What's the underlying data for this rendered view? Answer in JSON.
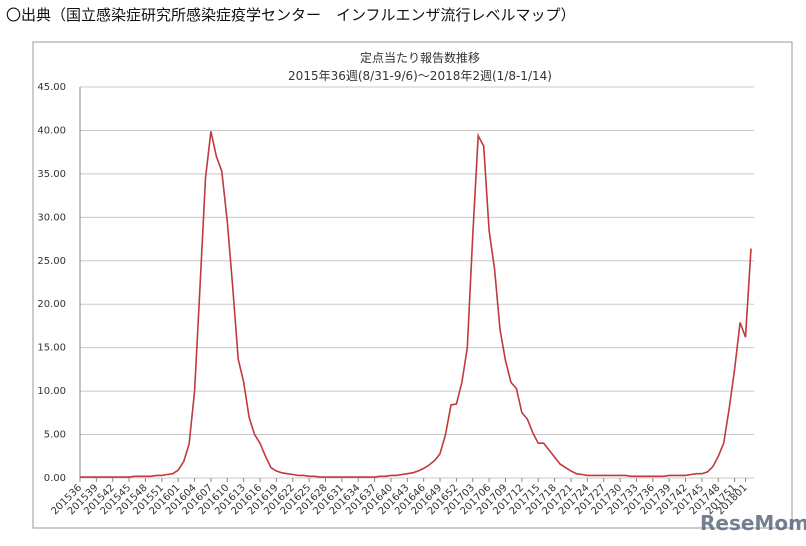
{
  "header": "〇出典（国立感染症研究所感染症疫学センター　インフルエンザ流行レベルマップ）",
  "watermark": "ReseMom",
  "chart_data": {
    "type": "line",
    "title": "定点当たり報告数推移",
    "subtitle": "2015年36週(8/31-9/6)〜2018年2週(1/8-1/14)",
    "color": "#c0393b",
    "grid": true,
    "ylim": [
      0,
      45
    ],
    "yticks": [
      {
        "value": 0,
        "label": "0.00"
      },
      {
        "value": 5,
        "label": "5.00"
      },
      {
        "value": 10,
        "label": "10.00"
      },
      {
        "value": 15,
        "label": "15.00"
      },
      {
        "value": 20,
        "label": "20.00"
      },
      {
        "value": 25,
        "label": "25.00"
      },
      {
        "value": 30,
        "label": "30.00"
      },
      {
        "value": 35,
        "label": "35.00"
      },
      {
        "value": 40,
        "label": "40.00"
      },
      {
        "value": 45,
        "label": "45.00"
      }
    ],
    "categories": [
      "201536",
      null,
      null,
      "201539",
      null,
      null,
      "201542",
      null,
      null,
      "201545",
      null,
      null,
      "201548",
      null,
      null,
      "201551",
      null,
      null,
      "201601",
      null,
      null,
      "201604",
      null,
      null,
      "201607",
      null,
      null,
      "201610",
      null,
      null,
      "201613",
      null,
      null,
      "201616",
      null,
      null,
      "201619",
      null,
      null,
      "201622",
      null,
      null,
      "201625",
      null,
      null,
      "201628",
      null,
      null,
      "201631",
      null,
      null,
      "201634",
      null,
      null,
      "201637",
      null,
      null,
      "201640",
      null,
      null,
      "201643",
      null,
      null,
      "201646",
      null,
      null,
      "201649",
      null,
      null,
      "201652",
      null,
      null,
      "201703",
      null,
      null,
      "201706",
      null,
      null,
      "201709",
      null,
      null,
      "201712",
      null,
      null,
      "201715",
      null,
      null,
      "201718",
      null,
      null,
      "201721",
      null,
      null,
      "201724",
      null,
      null,
      "201727",
      null,
      null,
      "201730",
      null,
      null,
      "201733",
      null,
      null,
      "201736",
      null,
      null,
      "201739",
      null,
      null,
      "201742",
      null,
      null,
      "201745",
      null,
      null,
      "201748",
      null,
      null,
      "201751",
      null,
      "201801",
      null
    ],
    "values": [
      0.1,
      0.1,
      0.1,
      0.1,
      0.1,
      0.1,
      0.1,
      0.1,
      0.1,
      0.1,
      0.2,
      0.2,
      0.2,
      0.2,
      0.3,
      0.3,
      0.4,
      0.5,
      0.9,
      1.9,
      3.9,
      10.0,
      22.0,
      34.5,
      39.9,
      37.0,
      35.3,
      29.5,
      22.0,
      13.7,
      11.0,
      7.0,
      5.0,
      4.0,
      2.5,
      1.2,
      0.8,
      0.6,
      0.5,
      0.4,
      0.3,
      0.3,
      0.2,
      0.2,
      0.1,
      0.1,
      0.1,
      0.1,
      0.1,
      0.1,
      0.1,
      0.1,
      0.1,
      0.1,
      0.1,
      0.2,
      0.2,
      0.3,
      0.3,
      0.4,
      0.5,
      0.6,
      0.8,
      1.1,
      1.5,
      2.0,
      2.8,
      5.0,
      8.4,
      8.5,
      11.0,
      15.0,
      28.0,
      39.4,
      38.2,
      28.5,
      24.0,
      17.0,
      13.5,
      11.0,
      10.3,
      7.5,
      6.8,
      5.2,
      4.0,
      4.0,
      3.2,
      2.4,
      1.6,
      1.2,
      0.8,
      0.5,
      0.4,
      0.3,
      0.3,
      0.3,
      0.3,
      0.3,
      0.3,
      0.3,
      0.3,
      0.2,
      0.2,
      0.2,
      0.2,
      0.2,
      0.2,
      0.2,
      0.3,
      0.3,
      0.3,
      0.3,
      0.4,
      0.5,
      0.5,
      0.7,
      1.3,
      2.5,
      4.0,
      8.0,
      12.5,
      17.9,
      16.2,
      26.4
    ]
  }
}
